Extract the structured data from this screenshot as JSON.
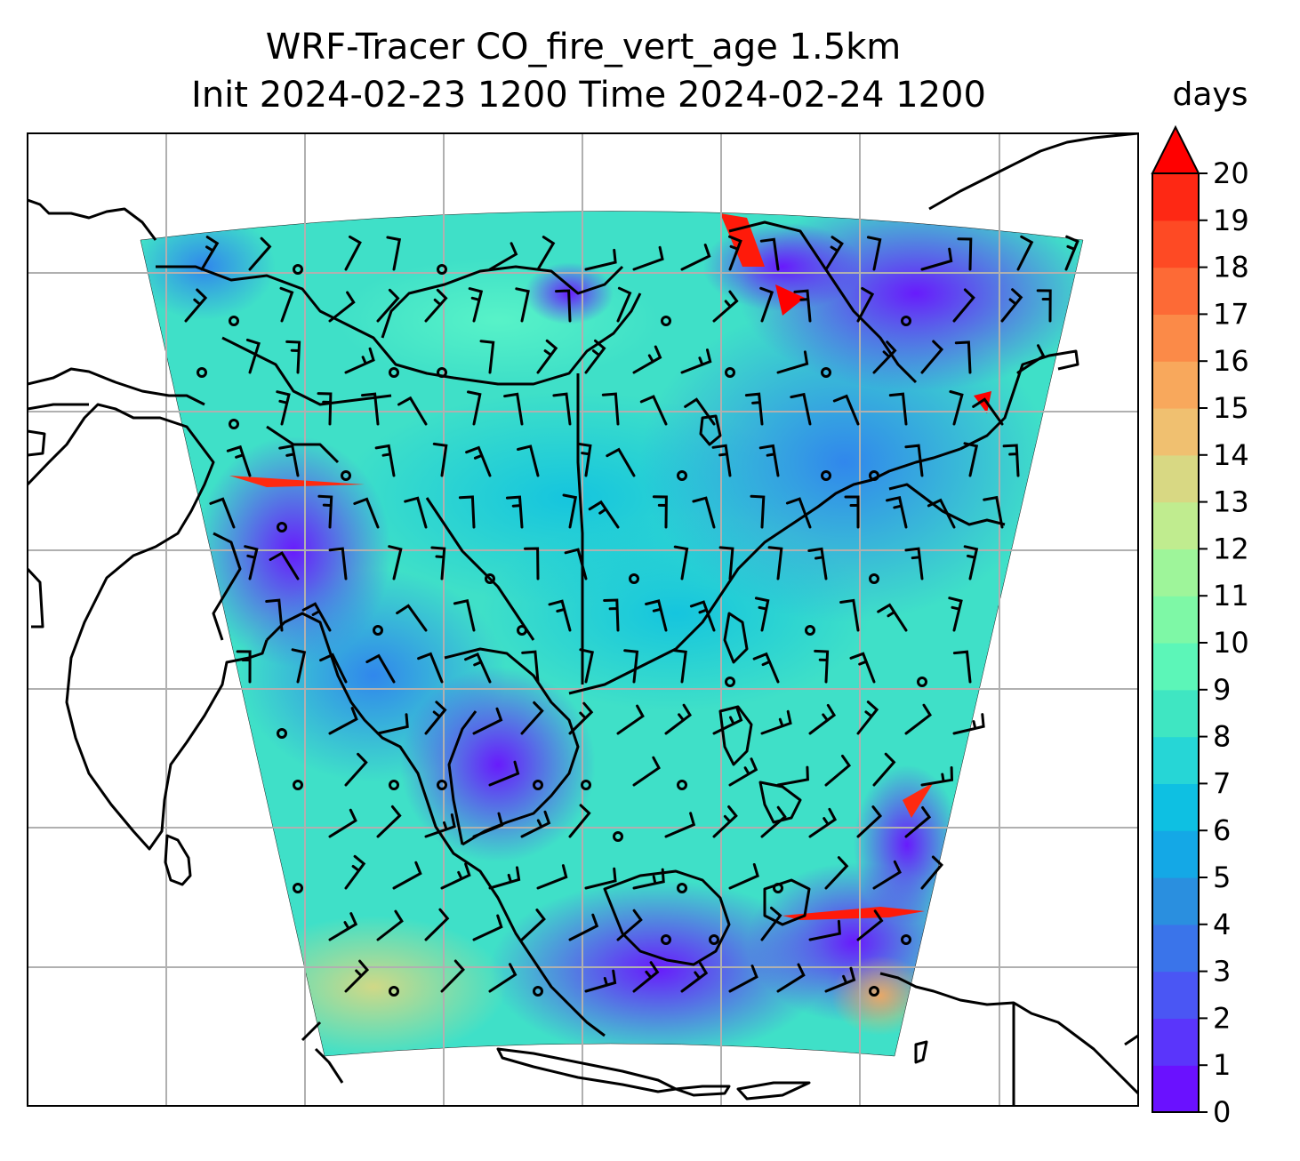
{
  "title": {
    "line1": "WRF-Tracer CO_fire_vert_age 1.5km",
    "line2": "Init 2024-02-23 1200 Time 2024-02-24 1200"
  },
  "colorbar": {
    "label": "days",
    "min": 0,
    "max": 20,
    "step": 1,
    "extend": "max",
    "ticks": [
      "0",
      "1",
      "2",
      "3",
      "4",
      "5",
      "6",
      "7",
      "8",
      "9",
      "10",
      "11",
      "12",
      "13",
      "14",
      "15",
      "16",
      "17",
      "18",
      "19",
      "20"
    ],
    "colors": [
      "#6a11ff",
      "#5a35fb",
      "#4a56f4",
      "#3a74ea",
      "#2a8fdf",
      "#14a8e6",
      "#0ec0e2",
      "#26d6d6",
      "#3fe6c2",
      "#5cf6b8",
      "#7ef8a6",
      "#9ef59a",
      "#c0ec8f",
      "#d8d883",
      "#f0c070",
      "#f8a85c",
      "#fb8a48",
      "#fd6a36",
      "#fe4a24",
      "#fe2814"
    ],
    "extend_color": "#ff0000"
  },
  "map": {
    "gridlines": "on",
    "field_name": "CO_fire_vert_age",
    "field_units": "days",
    "overlay": "wind barbs and calm circles",
    "coastlines": "black"
  }
}
